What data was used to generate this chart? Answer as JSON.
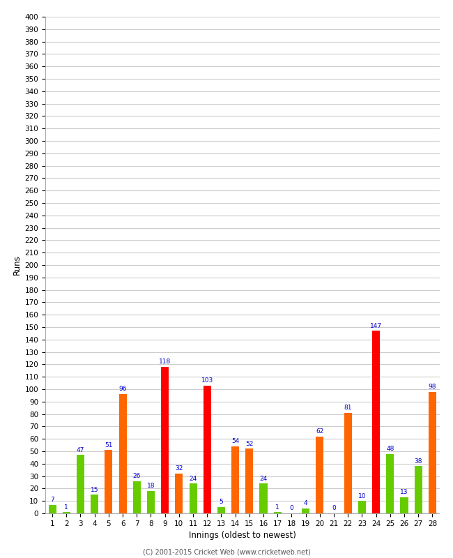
{
  "innings": [
    1,
    2,
    3,
    4,
    5,
    6,
    7,
    8,
    9,
    10,
    11,
    12,
    13,
    14,
    15,
    16,
    17,
    18,
    19,
    20,
    21,
    22,
    23,
    24,
    25,
    26,
    27,
    28
  ],
  "values": [
    7,
    1,
    47,
    15,
    51,
    96,
    26,
    18,
    118,
    32,
    24,
    103,
    5,
    54,
    52,
    24,
    1,
    0,
    4,
    62,
    0,
    81,
    10,
    147,
    48,
    13,
    38,
    98
  ],
  "colors": [
    "#66cc00",
    "#66cc00",
    "#66cc00",
    "#66cc00",
    "#ff6600",
    "#ff6600",
    "#66cc00",
    "#66cc00",
    "#ff0000",
    "#ff6600",
    "#66cc00",
    "#ff0000",
    "#66cc00",
    "#ff6600",
    "#ff6600",
    "#66cc00",
    "#66cc00",
    "#66cc00",
    "#66cc00",
    "#ff6600",
    "#66cc00",
    "#ff6600",
    "#66cc00",
    "#ff0000",
    "#66cc00",
    "#66cc00",
    "#66cc00",
    "#ff6600"
  ],
  "xlabel": "Innings (oldest to newest)",
  "ylabel": "Runs",
  "ylim": [
    0,
    400
  ],
  "yticks": [
    0,
    10,
    20,
    30,
    40,
    50,
    60,
    70,
    80,
    90,
    100,
    110,
    120,
    130,
    140,
    150,
    160,
    170,
    180,
    190,
    200,
    210,
    220,
    230,
    240,
    250,
    260,
    270,
    280,
    290,
    300,
    310,
    320,
    330,
    340,
    350,
    360,
    370,
    380,
    390,
    400
  ],
  "footer": "(C) 2001-2015 Cricket Web (www.cricketweb.net)",
  "background_color": "#ffffff",
  "grid_color": "#cccccc",
  "label_color": "#0000cc",
  "bar_width": 0.55
}
